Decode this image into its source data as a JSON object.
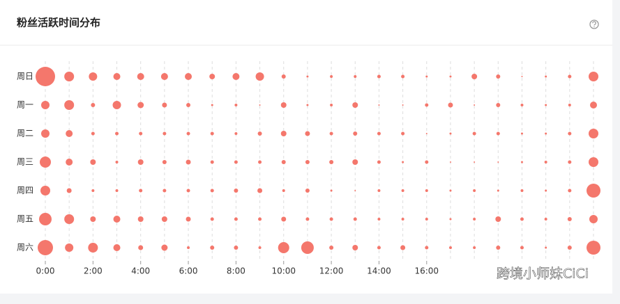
{
  "chart_data": {
    "type": "punchcard",
    "title": "粉丝活跃时间分布",
    "color": "#f4776c",
    "x": [
      0,
      1,
      2,
      3,
      4,
      5,
      6,
      7,
      8,
      9,
      10,
      11,
      12,
      13,
      14,
      15,
      16,
      17,
      18,
      19,
      20,
      21,
      22,
      23
    ],
    "xlim": [
      0,
      23
    ],
    "xticks": [
      {
        "value": 0,
        "label": "0:00"
      },
      {
        "value": 2,
        "label": "2:00"
      },
      {
        "value": 4,
        "label": "4:00"
      },
      {
        "value": 6,
        "label": "6:00"
      },
      {
        "value": 8,
        "label": "8:00"
      },
      {
        "value": 10,
        "label": "10:00"
      },
      {
        "value": 12,
        "label": "12:00"
      },
      {
        "value": 14,
        "label": "14:00"
      },
      {
        "value": 16,
        "label": "16:00"
      }
    ],
    "series": [
      {
        "name": "周日",
        "values": [
          14,
          7,
          6,
          5,
          5,
          5,
          5,
          4,
          5,
          6,
          3,
          1.5,
          2,
          2,
          2.5,
          2.5,
          1.5,
          1.5,
          4,
          3,
          1,
          1.5,
          2.5,
          7
        ]
      },
      {
        "name": "周一",
        "values": [
          6,
          7,
          3,
          6,
          4.5,
          3.5,
          3,
          1.5,
          2,
          1,
          4,
          1.5,
          2,
          4,
          1,
          1,
          2.5,
          3.5,
          1,
          3,
          2,
          1.5,
          2,
          5
        ]
      },
      {
        "name": "周二",
        "values": [
          6,
          5,
          2.5,
          2.5,
          2.5,
          2.5,
          2.5,
          2.5,
          2,
          3,
          4,
          3.5,
          2.5,
          3,
          2.5,
          2.5,
          1,
          1.5,
          2.5,
          2.5,
          1.5,
          1.5,
          2.5,
          7
        ]
      },
      {
        "name": "周三",
        "values": [
          8,
          5,
          4,
          2,
          4,
          3,
          3.5,
          2.5,
          2.5,
          2.5,
          3,
          3,
          3,
          4,
          2.5,
          1.5,
          2.5,
          1,
          1,
          1,
          1.5,
          2,
          2.5,
          7
        ]
      },
      {
        "name": "周四",
        "values": [
          7,
          3.5,
          2,
          2,
          2.5,
          2.5,
          2.5,
          2.5,
          3,
          3.5,
          2,
          3,
          1.5,
          1,
          2,
          2,
          2,
          1.5,
          2,
          1.5,
          2,
          1.5,
          2.5,
          10
        ]
      },
      {
        "name": "周五",
        "values": [
          9,
          7,
          4,
          5,
          4,
          4,
          3.5,
          2.5,
          2.5,
          2.5,
          3.5,
          2.5,
          2.5,
          2.5,
          2,
          2,
          2,
          1.5,
          2,
          4,
          2.5,
          2,
          3,
          6
        ]
      },
      {
        "name": "周六",
        "values": [
          11,
          6,
          7,
          5,
          3.5,
          4.5,
          2,
          3,
          3,
          2,
          8,
          9,
          3,
          4,
          2.5,
          3.5,
          2.5,
          2,
          2,
          3,
          2.5,
          1.5,
          3,
          10
        ]
      }
    ],
    "grid": true,
    "watermark": "跨境小师妹CiCi"
  }
}
